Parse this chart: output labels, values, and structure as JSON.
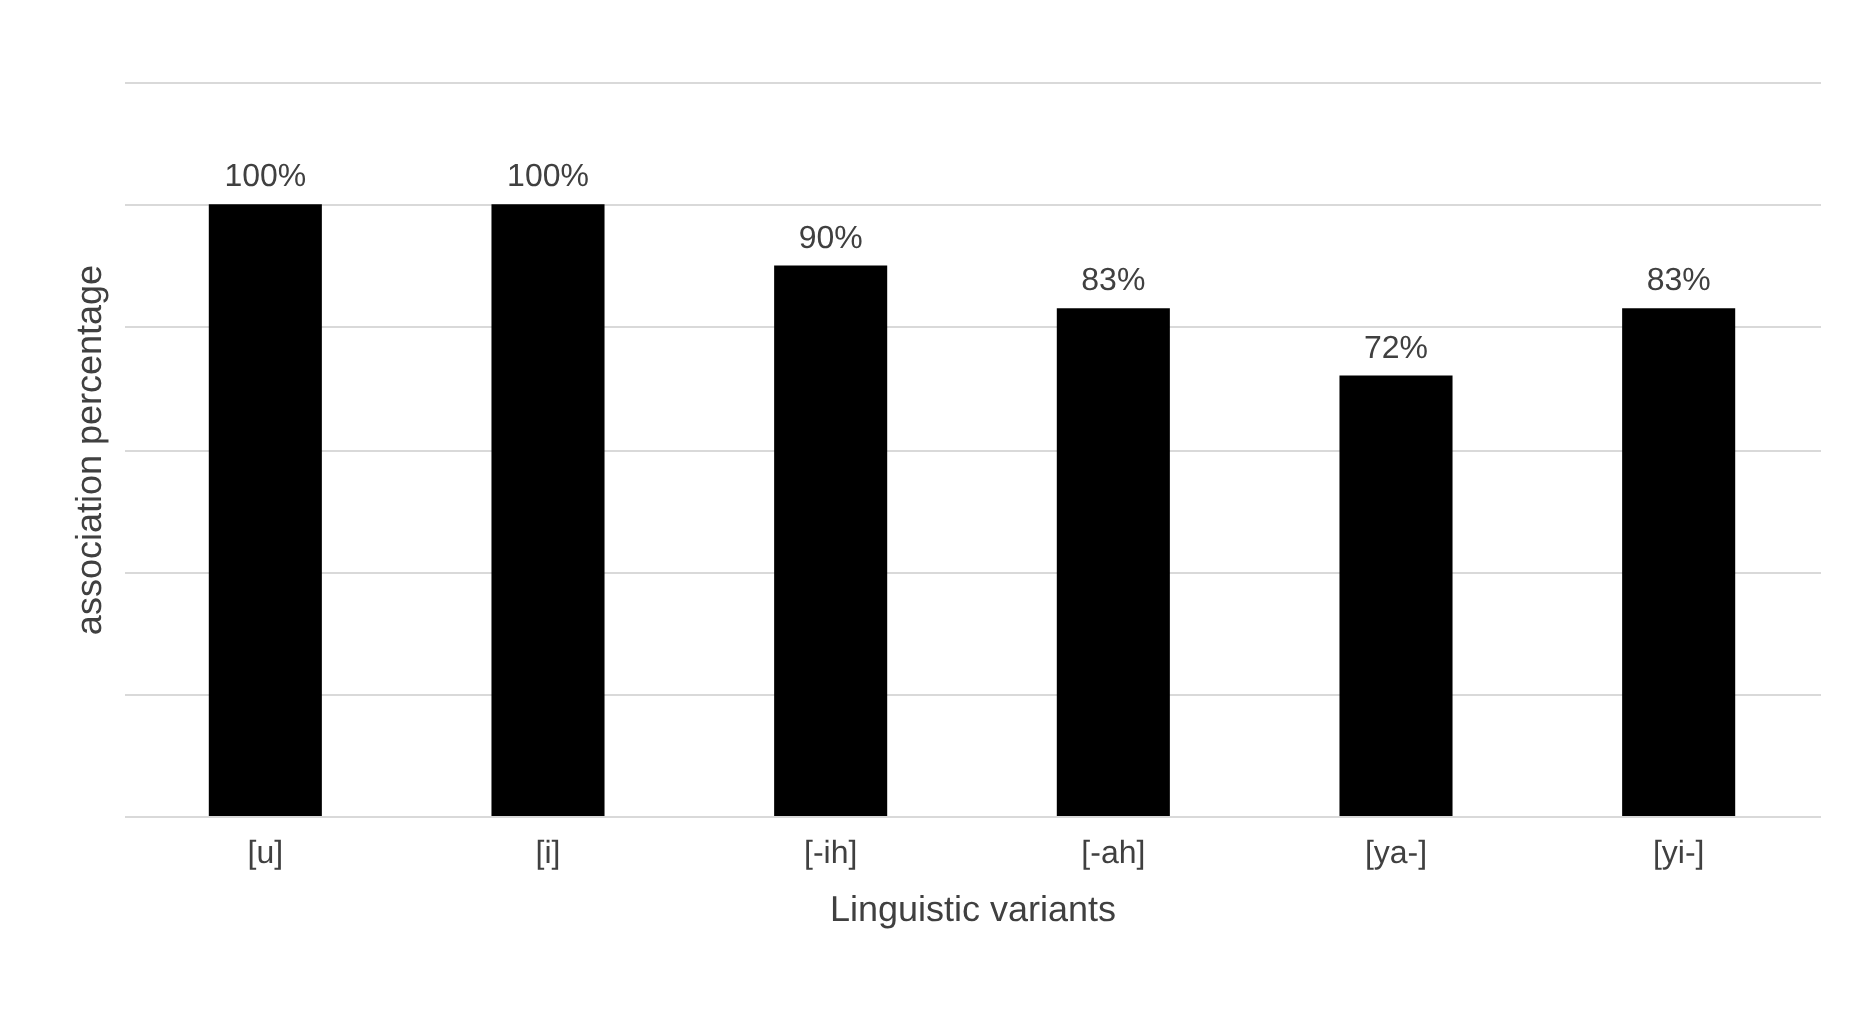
{
  "chart_data": {
    "type": "bar",
    "xlabel": "Linguistic variants",
    "ylabel": "association percentage",
    "categories": [
      "[u]",
      "[i]",
      "[-ih]",
      "[-ah]",
      "[ya-]",
      "[yi-]"
    ],
    "values": [
      100,
      100,
      90,
      83,
      72,
      83
    ],
    "value_labels": [
      "100%",
      "100%",
      "90%",
      "83%",
      "72%",
      "83%"
    ],
    "color": "#000000",
    "ylim": [
      0,
      120
    ],
    "yticks": [
      {
        "value": 0,
        "label": null
      },
      {
        "value": 20,
        "label": null
      },
      {
        "value": 40,
        "label": null
      },
      {
        "value": 60,
        "label": null
      },
      {
        "value": 80,
        "label": null
      },
      {
        "value": 100,
        "label": null
      },
      {
        "value": 120,
        "label": null
      }
    ],
    "grid": "y",
    "tick_labels": "x"
  }
}
